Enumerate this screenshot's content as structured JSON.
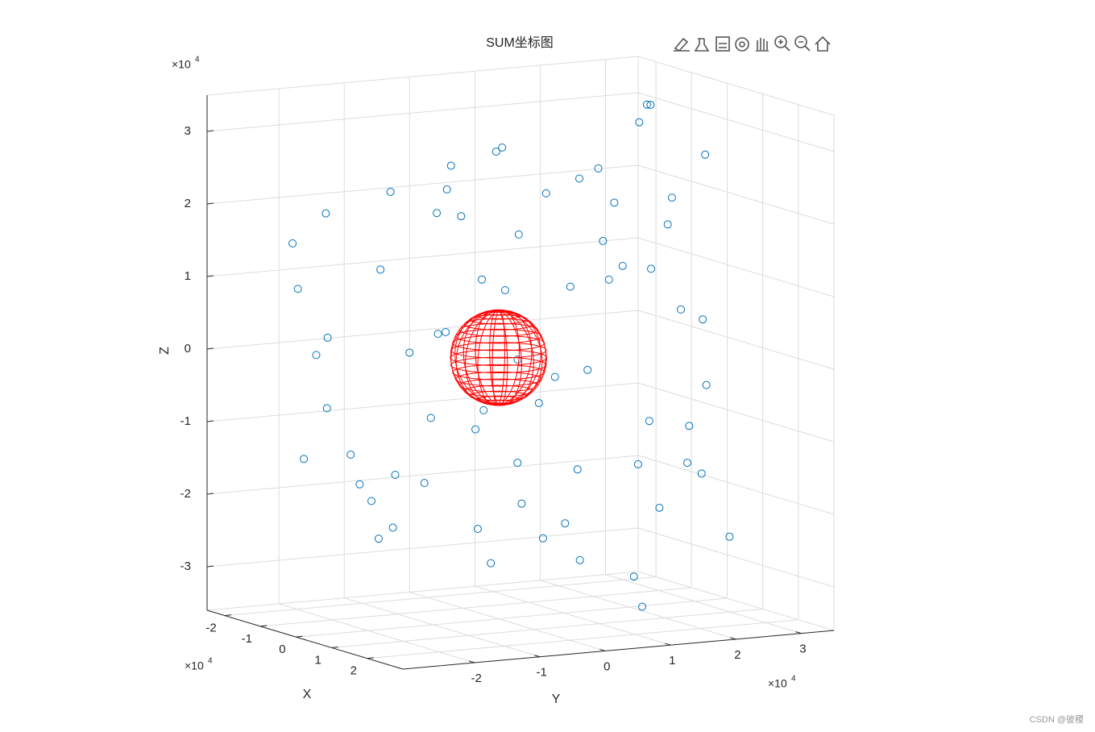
{
  "chart_data": {
    "type": "scatter3",
    "title": "SUM坐标图",
    "xlabel": "X",
    "ylabel": "Y",
    "zlabel": "Z",
    "x_multiplier": {
      "base": "×10",
      "exponent": "4"
    },
    "y_multiplier": {
      "base": "×10",
      "exponent": "4"
    },
    "z_multiplier": {
      "base": "×10",
      "exponent": "4"
    },
    "xlim": [
      -2.5,
      3
    ],
    "ylim": [
      -3.1,
      3.5
    ],
    "zlim": [
      -3.6,
      3.5
    ],
    "xticks": [
      -2,
      -1,
      0,
      1,
      2
    ],
    "yticks": [
      -2,
      -1,
      0,
      1,
      2,
      3
    ],
    "zticks": [
      -3,
      -2,
      -1,
      0,
      1,
      2,
      3
    ],
    "grid": true,
    "color": "#0072bd",
    "x": [
      0.2,
      -0.5,
      0.8,
      -1.2,
      1.5,
      -1.8,
      2.0,
      -2.1,
      1.2,
      -0.8,
      0.5,
      -1.5,
      2.3,
      -2.4,
      1.8,
      0.3,
      -0.4,
      -2.0,
      2.2,
      -1.0,
      1.0,
      -2.3,
      2.4,
      0.6,
      -0.7,
      -1.6,
      1.4,
      -1.9,
      0.9,
      -0.3,
      1.7,
      -1.1,
      0.4,
      -0.2,
      0.7,
      1.2,
      0.5,
      -0.5,
      0.3,
      -1.0,
      0.8,
      -0.6,
      1.1,
      0.5,
      -0.8,
      1.1,
      -1.3,
      0.9,
      -0.2,
      1.6,
      -1.5,
      0.1,
      -0.9,
      2.5,
      -2.5,
      1.9,
      -1.7,
      0.2,
      -0.6,
      1.3,
      -1.4,
      2.1,
      -2.2,
      0.7,
      -0.1,
      1.6,
      -1.9,
      0.4,
      -0.5,
      2.0
    ],
    "y": [
      -2.9,
      -2.8,
      -2.7,
      -2.5,
      -2.4,
      -2.0,
      -1.9,
      -1.5,
      -1.6,
      -1.4,
      -1.0,
      -0.8,
      -0.9,
      -0.5,
      -0.3,
      -0.2,
      0.1,
      0.3,
      0.4,
      0.6,
      0.7,
      0.9,
      1.0,
      1.2,
      1.4,
      1.6,
      1.7,
      1.9,
      2.1,
      2.3,
      2.2,
      2.5,
      2.7,
      2.9,
      2.8,
      1.5,
      2.0,
      2.6,
      3.0,
      3.2,
      3.1,
      2.4,
      1.6,
      -1.2,
      -0.6,
      0.5,
      1.0,
      -0.2,
      1.8,
      -1.1,
      -1.8,
      -2.0,
      0.8,
      0.0,
      0.0,
      1.3,
      -1.2,
      1.1,
      -2.3,
      2.4,
      2.0,
      -1.4,
      1.3,
      -0.7,
      -1.6,
      0.9,
      -0.1,
      0.4,
      -0.3,
      1.8
    ],
    "z": [
      0.3,
      1.1,
      -1.0,
      1.6,
      -1.2,
      -1.5,
      0.8,
      1.8,
      2.3,
      -2.5,
      2.8,
      -2.5,
      -1.6,
      0.9,
      -2.2,
      2.9,
      -2.9,
      2.0,
      1.9,
      2.7,
      -2.7,
      -1.4,
      -0.6,
      2.6,
      -2.5,
      1.9,
      -2.0,
      -0.7,
      1.8,
      -1.7,
      0.6,
      0.9,
      -1.1,
      0.4,
      -0.5,
      3.3,
      3.4,
      3.2,
      2.6,
      1.8,
      -2.6,
      -3.3,
      -3.4,
      0.5,
      -0.9,
      1.1,
      -0.3,
      -1.3,
      0.9,
      -0.4,
      0.2,
      -1.8,
      1.5,
      0.2,
      -0.3,
      1.4,
      -1.9,
      -1.6,
      -0.6,
      -1.6,
      2.1,
      1.5,
      0.5,
      -2.2,
      2.4,
      2.3,
      -2.0,
      -0.6,
      1.9,
      -1.3
    ],
    "sphere": {
      "center": [
        0,
        0,
        0
      ],
      "radius": 0.65,
      "color": "#ff0000"
    },
    "watermark": "CSDN @彼稷"
  }
}
